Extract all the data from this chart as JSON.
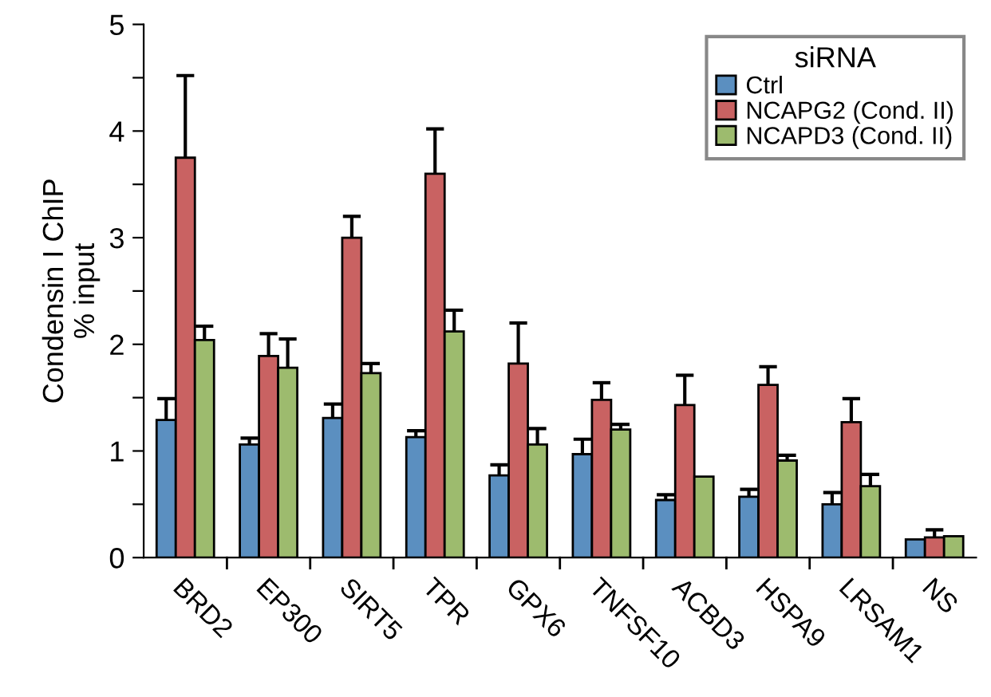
{
  "chart_data": {
    "type": "bar",
    "ylabel": "Condensin I ChIP\n% input",
    "legend_title": "siRNA",
    "categories": [
      "BRD2",
      "EP300",
      "SIRT5",
      "TPR",
      "GPX6",
      "TNFSF10",
      "ACBD3",
      "HSPA9",
      "LRSAM1",
      "NS"
    ],
    "series": [
      {
        "name": "Ctrl",
        "color": "#5b8fc0",
        "values": [
          1.29,
          1.06,
          1.31,
          1.13,
          0.77,
          0.97,
          0.54,
          0.57,
          0.5,
          0.17
        ],
        "errors": [
          0.2,
          0.06,
          0.13,
          0.06,
          0.1,
          0.14,
          0.05,
          0.07,
          0.11,
          null
        ]
      },
      {
        "name": "NCAPG2 (Cond. II)",
        "color": "#c96262",
        "values": [
          3.75,
          1.89,
          3.0,
          3.6,
          1.82,
          1.48,
          1.43,
          1.62,
          1.27,
          0.19
        ],
        "errors": [
          0.77,
          0.21,
          0.2,
          0.42,
          0.38,
          0.16,
          0.28,
          0.17,
          0.22,
          0.07
        ]
      },
      {
        "name": "NCAPD3 (Cond. II)",
        "color": "#9dbb6e",
        "values": [
          2.04,
          1.78,
          1.73,
          2.12,
          1.06,
          1.2,
          0.76,
          0.91,
          0.67,
          0.2
        ],
        "errors": [
          0.13,
          0.27,
          0.09,
          0.2,
          0.15,
          0.05,
          null,
          0.05,
          0.11,
          null
        ]
      }
    ],
    "ylim": [
      0,
      5
    ],
    "yticks": [
      0,
      {
        "value": 0.5,
        "label": null
      },
      1,
      {
        "value": 1.5,
        "label": null
      },
      2,
      {
        "value": 2.5,
        "label": null
      },
      3,
      {
        "value": 3.5,
        "label": null
      },
      4,
      {
        "value": 4.5,
        "label": null
      },
      5
    ],
    "grid": false,
    "legend": "top right"
  }
}
